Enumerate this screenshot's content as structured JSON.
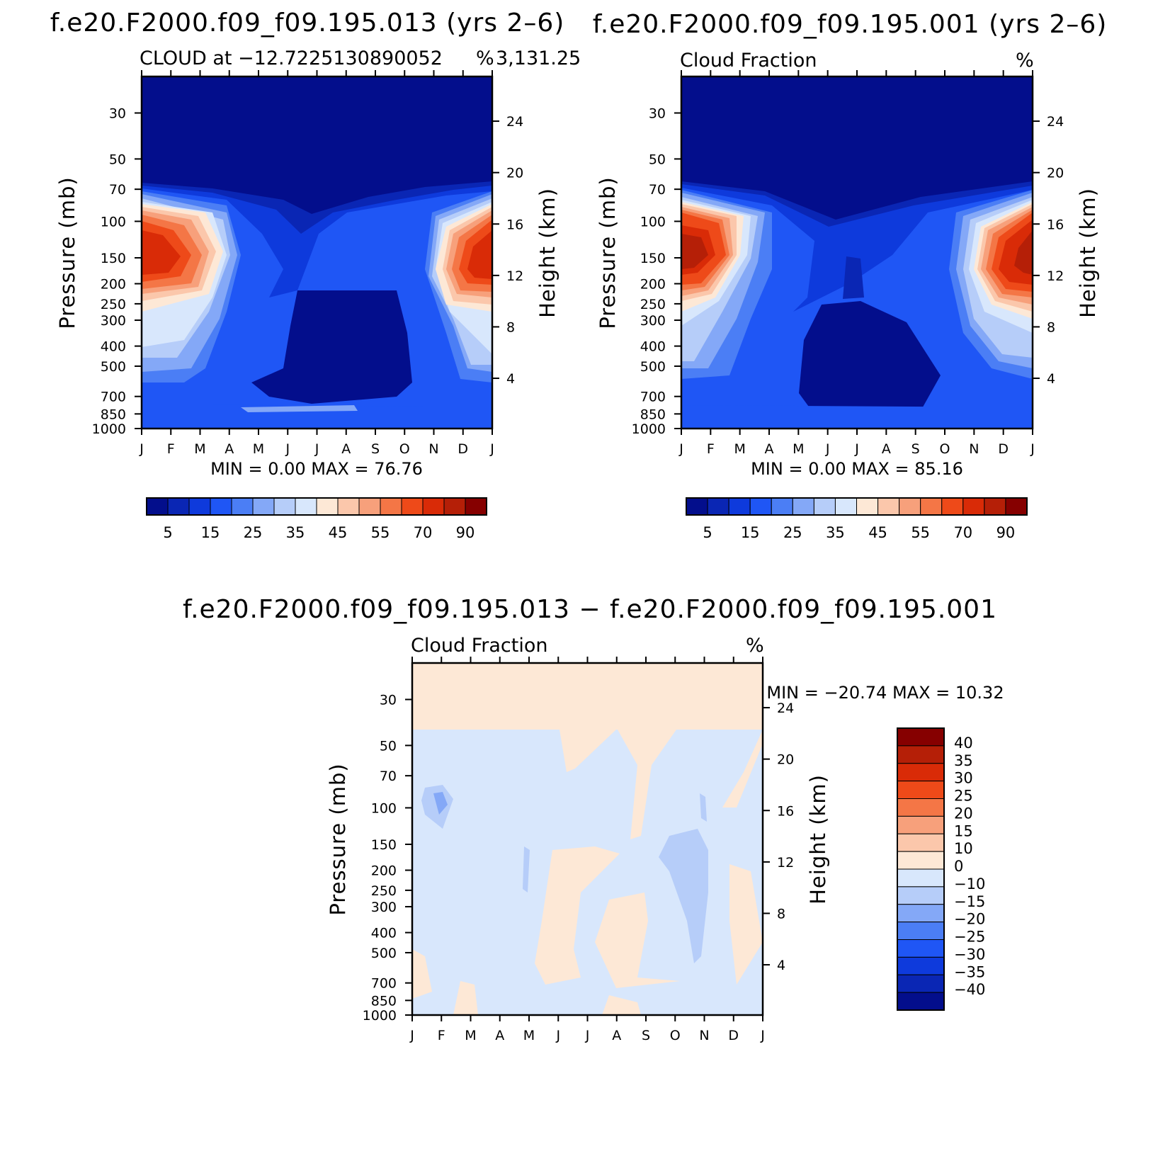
{
  "chart_data": [
    {
      "type": "heatmap",
      "panel": "top-left",
      "title": "f.e20.F2000.f09_f09.195.013 (yrs 2–6)",
      "subtitle_left": "CLOUD at −12.7225130890052",
      "subtitle_right": "%",
      "subtitle_extra": "3,131.25",
      "ylabel": "Pressure (mb)",
      "ylabel_right": "Height (km)",
      "months": [
        "J",
        "F",
        "M",
        "A",
        "M",
        "J",
        "J",
        "A",
        "S",
        "O",
        "N",
        "D",
        "J"
      ],
      "pressure_ticks": [
        "30",
        "50",
        "70",
        "100",
        "150",
        "200",
        "250",
        "300",
        "400",
        "500",
        "700",
        "850",
        "1000"
      ],
      "height_ticks": [
        "24",
        "20",
        "16",
        "12",
        "8",
        "4"
      ],
      "minmax_text": "MIN =    0.00 MAX =    76.76",
      "min": 0.0,
      "max": 76.76,
      "colorbar_labels": [
        "5",
        "15",
        "25",
        "35",
        "45",
        "55",
        "70",
        "90"
      ],
      "description": "Cloud fraction maxima (55-70%) near 150-200 mb in Jan-Feb and Nov-Dec; minimum below 300 mb during Jun-Sep."
    },
    {
      "type": "heatmap",
      "panel": "top-right",
      "title": "f.e20.F2000.f09_f09.195.001 (yrs 2–6)",
      "subtitle_left": "Cloud Fraction",
      "subtitle_right": "%",
      "ylabel": "Pressure (mb)",
      "ylabel_right": "Height (km)",
      "months": [
        "J",
        "F",
        "M",
        "A",
        "M",
        "J",
        "J",
        "A",
        "S",
        "O",
        "N",
        "D",
        "J"
      ],
      "pressure_ticks": [
        "30",
        "50",
        "70",
        "100",
        "150",
        "200",
        "250",
        "300",
        "400",
        "500",
        "700",
        "850",
        "1000"
      ],
      "height_ticks": [
        "24",
        "20",
        "16",
        "12",
        "8",
        "4"
      ],
      "minmax_text": "MIN =    0.00 MAX =    85.16",
      "min": 0.0,
      "max": 85.16,
      "colorbar_labels": [
        "5",
        "15",
        "25",
        "35",
        "45",
        "55",
        "70",
        "90"
      ]
    },
    {
      "type": "heatmap",
      "panel": "bottom-difference",
      "title": "f.e20.F2000.f09_f09.195.013 − f.e20.F2000.f09_f09.195.001",
      "subtitle_left": "Cloud Fraction",
      "subtitle_right": "%",
      "ylabel": "Pressure (mb)",
      "ylabel_right": "Height (km)",
      "months": [
        "J",
        "F",
        "M",
        "A",
        "M",
        "J",
        "J",
        "A",
        "S",
        "O",
        "N",
        "D",
        "J"
      ],
      "pressure_ticks": [
        "30",
        "50",
        "70",
        "100",
        "150",
        "200",
        "250",
        "300",
        "400",
        "500",
        "700",
        "850",
        "1000"
      ],
      "height_ticks": [
        "24",
        "20",
        "16",
        "12",
        "8",
        "4"
      ],
      "minmax_text": "MIN = −20.74 MAX =    10.32",
      "min": -20.74,
      "max": 10.32,
      "colorbar_labels": [
        "40",
        "35",
        "30",
        "25",
        "20",
        "15",
        "10",
        "0",
        "−10",
        "−15",
        "−20",
        "−25",
        "−30",
        "−35",
        "−40"
      ]
    }
  ],
  "colors": {
    "seq": [
      "#030e8c",
      "#0a26b4",
      "#0e3adc",
      "#1f56f5",
      "#4b7ef5",
      "#84a8f7",
      "#b6cdf9",
      "#d8e7fc",
      "#fde8d6",
      "#fbc7ab",
      "#f7a07b",
      "#f47646",
      "#ee4a19",
      "#d92b07",
      "#b51f07",
      "#860000"
    ],
    "div": [
      "#860000",
      "#b51f07",
      "#d92b07",
      "#ee4a19",
      "#f47646",
      "#f7a07b",
      "#fbc7ab",
      "#fde8d6",
      "#d8e7fc",
      "#b6cdf9",
      "#84a8f7",
      "#4b7ef5",
      "#1f56f5",
      "#0e3adc",
      "#0a26b4",
      "#030e8c"
    ]
  }
}
